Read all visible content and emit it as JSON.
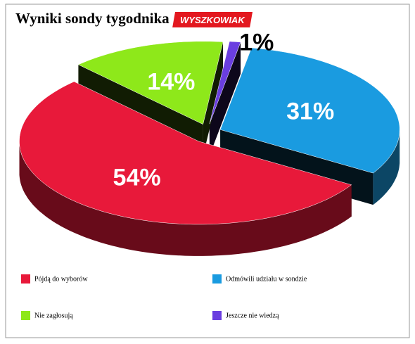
{
  "chart_data": {
    "type": "pie",
    "title": "Wyniki sondy tygodnika",
    "brand": "WYSZKOWIAK",
    "categories": [
      "Pójdą do wyborów",
      "Odmówili udziału w sondzie",
      "Nie zagłosują",
      "Jeszcze nie wiedzą"
    ],
    "values": [
      54,
      31,
      14,
      1
    ],
    "value_labels": [
      "54%",
      "31%",
      "14%",
      "1%"
    ],
    "colors": [
      "#e8193a",
      "#1a9be0",
      "#8ee81a",
      "#6a3ee0"
    ],
    "legend": "bottom"
  }
}
